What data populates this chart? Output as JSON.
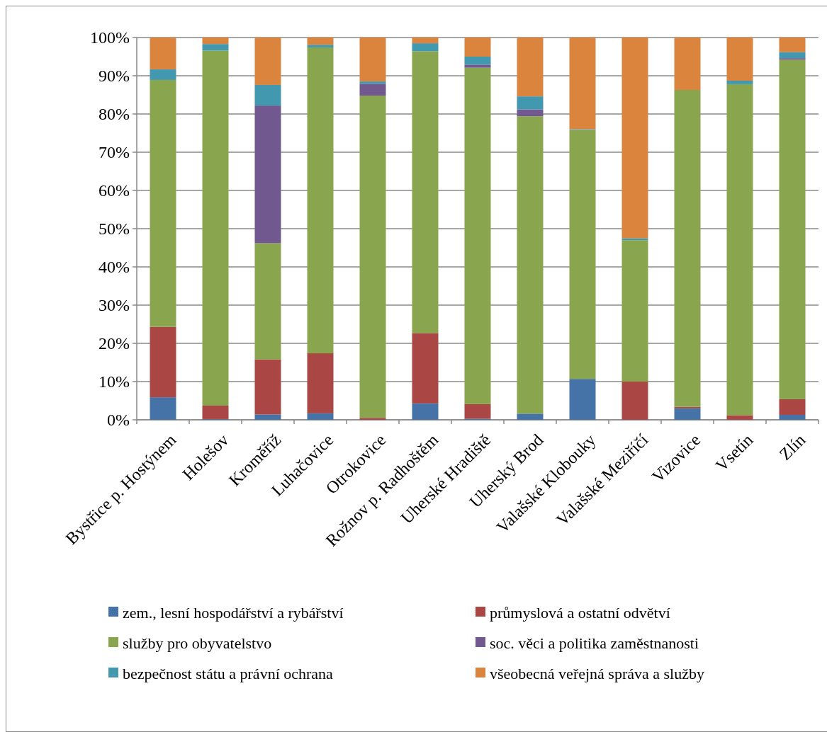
{
  "chart_data": {
    "type": "bar",
    "stacked": true,
    "categories": [
      "Bystřice p. Hostýnem",
      "Holešov",
      "Kroměříž",
      "Luhačovice",
      "Otrokovice",
      "Rožnov p. Radhoštěm",
      "Uherské Hradiště",
      "Uherský Brod",
      "Valašské Klobouky",
      "Valašské Meziříčí",
      "Vizovice",
      "Vsetín",
      "Zlín"
    ],
    "series": [
      {
        "name": "zem., lesní hospodářství a rybářství",
        "color": "#4572a7",
        "values": [
          5.9,
          0.2,
          1.4,
          1.7,
          0,
          4.3,
          0.3,
          1.6,
          10.7,
          0,
          3.0,
          0,
          1.3
        ]
      },
      {
        "name": "průmyslová a ostatní odvětví",
        "color": "#aa4643",
        "values": [
          18.4,
          3.5,
          14.4,
          15.7,
          0.5,
          18.4,
          3.8,
          0,
          0,
          10.0,
          0.4,
          1.2,
          4.1
        ]
      },
      {
        "name": "služby pro obyvatelstvo",
        "color": "#89a54e",
        "values": [
          64.6,
          92.9,
          30.4,
          80.0,
          84.3,
          73.7,
          88.0,
          77.8,
          65.1,
          37.0,
          82.9,
          86.6,
          88.8
        ]
      },
      {
        "name": "soc. věci a politika zaměstnanosti",
        "color": "#71588f",
        "values": [
          0,
          0,
          36.0,
          0,
          3.1,
          0,
          0.8,
          1.8,
          0,
          0,
          0,
          0,
          0.4
        ]
      },
      {
        "name": "bezpečnost státu a právní ochrana",
        "color": "#4198af",
        "values": [
          2.8,
          1.7,
          5.4,
          0.7,
          0.6,
          2.1,
          2.1,
          3.4,
          0.2,
          0.5,
          0,
          0.9,
          1.6
        ]
      },
      {
        "name": "všeobecná veřejná správa a služby",
        "color": "#db843d",
        "values": [
          8.3,
          1.7,
          12.4,
          1.9,
          11.5,
          1.5,
          5.0,
          15.4,
          24.0,
          52.5,
          13.7,
          11.3,
          3.8
        ]
      }
    ],
    "ylim": [
      0,
      100
    ],
    "yticks": [
      {
        "value": 0,
        "label": "0%"
      },
      {
        "value": 10,
        "label": "10%"
      },
      {
        "value": 20,
        "label": "20%"
      },
      {
        "value": 30,
        "label": "30%"
      },
      {
        "value": 40,
        "label": "40%"
      },
      {
        "value": 50,
        "label": "50%"
      },
      {
        "value": 60,
        "label": "60%"
      },
      {
        "value": 70,
        "label": "70%"
      },
      {
        "value": 80,
        "label": "80%"
      },
      {
        "value": 90,
        "label": "90%"
      },
      {
        "value": 100,
        "label": "100%"
      }
    ],
    "grid": "y",
    "legend": "bottom"
  }
}
